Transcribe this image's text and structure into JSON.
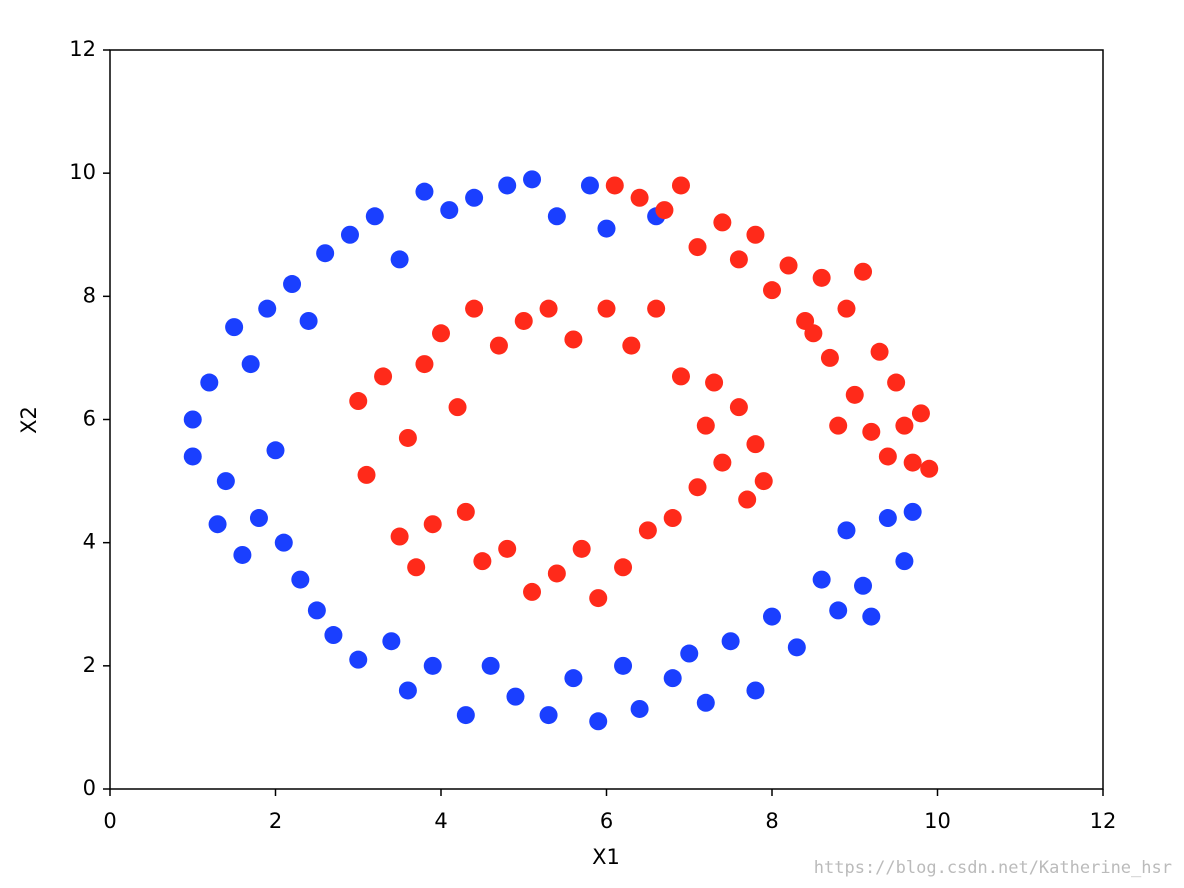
{
  "chart_data": {
    "type": "scatter",
    "x_label": "X1",
    "y_label": "X2",
    "xlim": [
      0,
      12
    ],
    "ylim": [
      0,
      12
    ],
    "xticks": [
      0,
      2,
      4,
      6,
      8,
      10,
      12
    ],
    "yticks": [
      0,
      2,
      4,
      6,
      8,
      10,
      12
    ],
    "watermark": "https://blog.csdn.net/Katherine_hsr",
    "series": [
      {
        "color": "#1a3fff",
        "x": [
          1.0,
          1.0,
          1.2,
          1.3,
          1.4,
          1.5,
          1.6,
          1.7,
          1.8,
          1.9,
          2.0,
          2.1,
          2.2,
          2.3,
          2.4,
          2.5,
          2.6,
          2.7,
          2.9,
          3.0,
          3.2,
          3.4,
          3.5,
          3.6,
          3.8,
          3.9,
          4.1,
          4.3,
          4.4,
          4.6,
          4.8,
          4.9,
          5.1,
          5.3,
          5.4,
          5.6,
          5.8,
          5.9,
          6.0,
          6.2,
          6.4,
          6.6,
          6.8,
          7.0,
          7.2,
          7.5,
          7.8,
          8.0,
          8.3,
          8.6,
          8.8,
          8.9,
          9.1,
          9.2,
          9.4,
          9.6,
          9.7
        ],
        "y": [
          6.0,
          5.4,
          6.6,
          4.3,
          5.0,
          7.5,
          3.8,
          6.9,
          4.4,
          7.8,
          5.5,
          4.0,
          8.2,
          3.4,
          7.6,
          2.9,
          8.7,
          2.5,
          9.0,
          2.1,
          9.3,
          2.4,
          8.6,
          1.6,
          9.7,
          2.0,
          9.4,
          1.2,
          9.6,
          2.0,
          9.8,
          1.5,
          9.9,
          1.2,
          9.3,
          1.8,
          9.8,
          1.1,
          9.1,
          2.0,
          1.3,
          9.3,
          1.8,
          2.2,
          1.4,
          2.4,
          1.6,
          2.8,
          2.3,
          3.4,
          2.9,
          4.2,
          3.3,
          2.8,
          4.4,
          3.7,
          4.5
        ]
      },
      {
        "color": "#ff2a1a",
        "x": [
          6.1,
          6.4,
          6.7,
          6.9,
          7.1,
          7.4,
          7.6,
          7.8,
          8.0,
          8.2,
          8.4,
          8.6,
          8.7,
          8.9,
          9.0,
          9.1,
          9.2,
          9.3,
          9.4,
          9.5,
          9.6,
          9.7,
          9.8,
          9.9,
          8.8,
          8.5,
          3.0,
          3.1,
          3.3,
          3.5,
          3.6,
          3.7,
          3.8,
          3.9,
          4.0,
          4.2,
          4.3,
          4.4,
          4.5,
          4.7,
          4.8,
          5.0,
          5.1,
          5.3,
          5.4,
          5.6,
          5.7,
          5.9,
          6.0,
          6.2,
          6.3,
          6.5,
          6.6,
          6.8,
          6.9,
          7.1,
          7.2,
          7.3,
          7.4,
          7.6,
          7.7,
          7.8,
          7.9
        ],
        "y": [
          9.8,
          9.6,
          9.4,
          9.8,
          8.8,
          9.2,
          8.6,
          9.0,
          8.1,
          8.5,
          7.6,
          8.3,
          7.0,
          7.8,
          6.4,
          8.4,
          5.8,
          7.1,
          5.4,
          6.6,
          5.9,
          5.3,
          6.1,
          5.2,
          5.9,
          7.4,
          6.3,
          5.1,
          6.7,
          4.1,
          5.7,
          3.6,
          6.9,
          4.3,
          7.4,
          6.2,
          4.5,
          7.8,
          3.7,
          7.2,
          3.9,
          7.6,
          3.2,
          7.8,
          3.5,
          7.3,
          3.9,
          3.1,
          7.8,
          3.6,
          7.2,
          4.2,
          7.8,
          4.4,
          6.7,
          4.9,
          5.9,
          6.6,
          5.3,
          6.2,
          4.7,
          5.6,
          5.0
        ]
      }
    ]
  }
}
